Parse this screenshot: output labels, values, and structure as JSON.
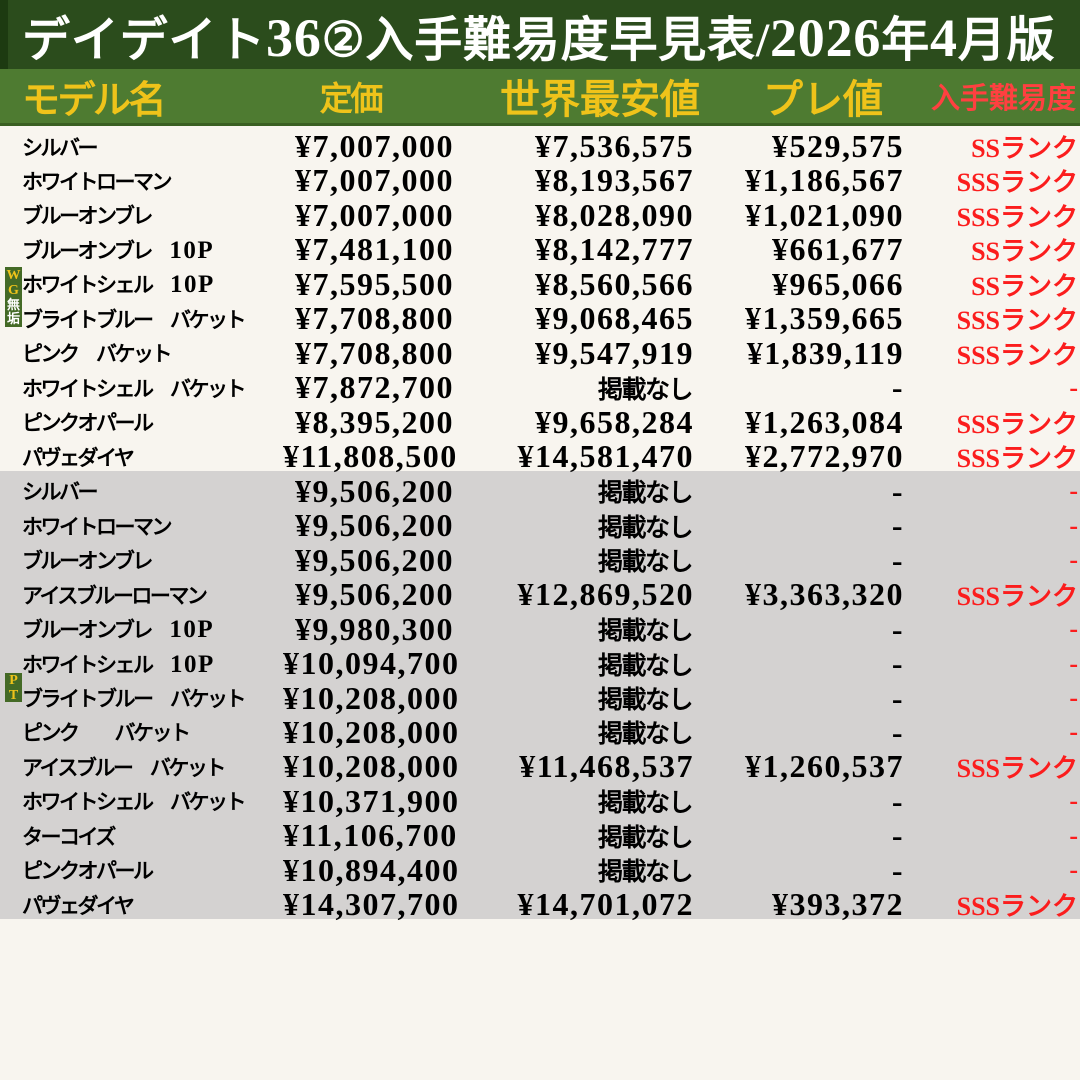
{
  "title": "デイデイト36②入手難易度早見表/2026年4月版",
  "columns": [
    "モデル名",
    "定価",
    "世界最安値",
    "プレ値",
    "入手難易度"
  ],
  "na_text": "掲載なし",
  "dash": "-",
  "colors": {
    "title_bg": "#2b4c1c",
    "title_edge": "#1d3a11",
    "header_bg": "#4e7b31",
    "header_border": "#3a5f22",
    "badge_green": "#446a26",
    "yellow": "#efc31a",
    "header_red": "#ff4040",
    "rank_red": "#fb1d1d",
    "cream": "#f8f5ef",
    "gray": "#d4d2d1"
  },
  "groups": [
    {
      "badge": "WG無垢",
      "rows": [
        {
          "model": "シルバー",
          "list_price": "¥7,007,000",
          "world_lowest": "¥7,536,575",
          "premium": "¥529,575",
          "rank": "SSランク"
        },
        {
          "model": "ホワイトローマン",
          "list_price": "¥7,007,000",
          "world_lowest": "¥8,193,567",
          "premium": "¥1,186,567",
          "rank": "SSSランク"
        },
        {
          "model": "ブルーオンブレ",
          "list_price": "¥7,007,000",
          "world_lowest": "¥8,028,090",
          "premium": "¥1,021,090",
          "rank": "SSSランク"
        },
        {
          "model": "ブルーオンブレ　10P",
          "list_price": "¥7,481,100",
          "world_lowest": "¥8,142,777",
          "premium": "¥661,677",
          "rank": "SSランク"
        },
        {
          "model": "ホワイトシェル　10P",
          "list_price": "¥7,595,500",
          "world_lowest": "¥8,560,566",
          "premium": "¥965,066",
          "rank": "SSランク"
        },
        {
          "model": "ブライトブルー　バケット",
          "list_price": "¥7,708,800",
          "world_lowest": "¥9,068,465",
          "premium": "¥1,359,665",
          "rank": "SSSランク"
        },
        {
          "model": "ピンク　バケット",
          "list_price": "¥7,708,800",
          "world_lowest": "¥9,547,919",
          "premium": "¥1,839,119",
          "rank": "SSSランク"
        },
        {
          "model": "ホワイトシェル　バケット",
          "list_price": "¥7,872,700",
          "world_lowest": "掲載なし",
          "premium": "-",
          "rank": "-"
        },
        {
          "model": "ピンクオパール",
          "list_price": "¥8,395,200",
          "world_lowest": "¥9,658,284",
          "premium": "¥1,263,084",
          "rank": "SSSランク"
        },
        {
          "model": "パヴェダイヤ",
          "list_price": "¥11,808,500",
          "world_lowest": "¥14,581,470",
          "premium": "¥2,772,970",
          "rank": "SSSランク"
        }
      ]
    },
    {
      "badge": "PT",
      "rows": [
        {
          "model": "シルバー",
          "list_price": "¥9,506,200",
          "world_lowest": "掲載なし",
          "premium": "-",
          "rank": "-"
        },
        {
          "model": "ホワイトローマン",
          "list_price": "¥9,506,200",
          "world_lowest": "掲載なし",
          "premium": "-",
          "rank": "-"
        },
        {
          "model": "ブルーオンブレ",
          "list_price": "¥9,506,200",
          "world_lowest": "掲載なし",
          "premium": "-",
          "rank": "-"
        },
        {
          "model": "アイスブルーローマン",
          "list_price": "¥9,506,200",
          "world_lowest": "¥12,869,520",
          "premium": "¥3,363,320",
          "rank": "SSSランク"
        },
        {
          "model": "ブルーオンブレ　10P",
          "list_price": "¥9,980,300",
          "world_lowest": "掲載なし",
          "premium": "-",
          "rank": "-"
        },
        {
          "model": "ホワイトシェル　10P",
          "list_price": "¥10,094,700",
          "world_lowest": "掲載なし",
          "premium": "-",
          "rank": "-"
        },
        {
          "model": "ブライトブルー　バケット",
          "list_price": "¥10,208,000",
          "world_lowest": "掲載なし",
          "premium": "-",
          "rank": "-"
        },
        {
          "model": "ピンク　　バケット",
          "list_price": "¥10,208,000",
          "world_lowest": "掲載なし",
          "premium": "-",
          "rank": "-"
        },
        {
          "model": "アイスブルー　バケット",
          "list_price": "¥10,208,000",
          "world_lowest": "¥11,468,537",
          "premium": "¥1,260,537",
          "rank": "SSSランク"
        },
        {
          "model": "ホワイトシェル　バケット",
          "list_price": "¥10,371,900",
          "world_lowest": "掲載なし",
          "premium": "-",
          "rank": "-"
        },
        {
          "model": "ターコイズ",
          "list_price": "¥11,106,700",
          "world_lowest": "掲載なし",
          "premium": "-",
          "rank": "-"
        },
        {
          "model": "ピンクオパール",
          "list_price": "¥10,894,400",
          "world_lowest": "掲載なし",
          "premium": "-",
          "rank": "-"
        },
        {
          "model": "パヴェダイヤ",
          "list_price": "¥14,307,700",
          "world_lowest": "¥14,701,072",
          "premium": "¥393,372",
          "rank": "SSSランク"
        }
      ]
    }
  ]
}
